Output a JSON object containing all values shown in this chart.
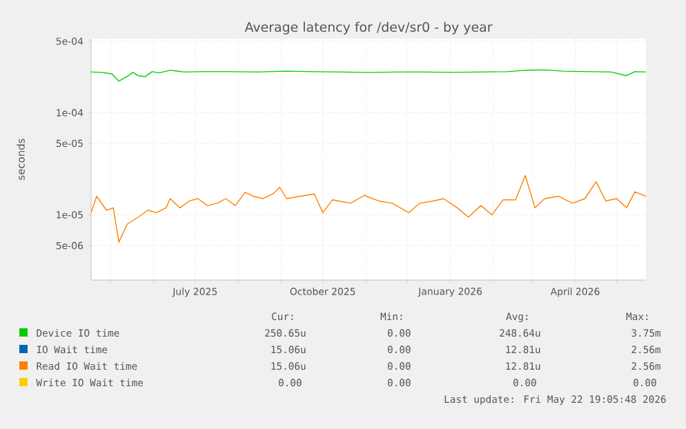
{
  "chart_data": {
    "type": "line",
    "title": "Average latency for /dev/sr0 - by year",
    "ylabel": "seconds",
    "x": [
      "2025-04-17",
      "2025-04-21",
      "2025-04-28",
      "2025-05-03",
      "2025-05-07",
      "2025-05-13",
      "2025-05-21",
      "2025-05-28",
      "2025-06-03",
      "2025-06-10",
      "2025-06-13",
      "2025-06-20",
      "2025-06-27",
      "2025-07-03",
      "2025-07-10",
      "2025-07-17",
      "2025-07-23",
      "2025-07-30",
      "2025-08-06",
      "2025-08-12",
      "2025-08-19",
      "2025-08-26",
      "2025-08-31",
      "2025-09-05",
      "2025-09-15",
      "2025-09-25",
      "2025-10-01",
      "2025-10-08",
      "2025-10-21",
      "2025-10-31",
      "2025-11-10",
      "2025-11-20",
      "2025-12-02",
      "2025-12-10",
      "2025-12-20",
      "2025-12-27",
      "2026-01-06",
      "2026-01-14",
      "2026-01-23",
      "2026-01-31",
      "2026-02-08",
      "2026-02-17",
      "2026-02-24",
      "2026-03-03",
      "2026-03-10",
      "2026-03-20",
      "2026-03-30",
      "2026-04-08",
      "2026-04-16",
      "2026-04-23",
      "2026-05-01",
      "2026-05-08",
      "2026-05-14",
      "2026-05-22"
    ],
    "series": [
      {
        "name": "Device IO time",
        "color": "#00cc00",
        "x": [
          "2025-04-17",
          "2025-04-24",
          "2025-05-02",
          "2025-05-07",
          "2025-05-10",
          "2025-05-14",
          "2025-05-17",
          "2025-05-21",
          "2025-05-26",
          "2025-05-31",
          "2025-06-05",
          "2025-06-13",
          "2025-06-23",
          "2025-07-06",
          "2025-07-26",
          "2025-08-15",
          "2025-09-04",
          "2025-09-24",
          "2025-10-14",
          "2025-11-03",
          "2025-11-23",
          "2025-12-13",
          "2026-01-02",
          "2026-01-22",
          "2026-02-11",
          "2026-02-24",
          "2026-03-10",
          "2026-03-23",
          "2026-04-12",
          "2026-04-27",
          "2026-05-08",
          "2026-05-14",
          "2026-05-22"
        ],
        "values": [
          0.00025,
          0.000248,
          0.00024,
          0.000203,
          0.000215,
          0.00023,
          0.000248,
          0.00023,
          0.000225,
          0.000252,
          0.000245,
          0.00026,
          0.00025,
          0.000252,
          0.000252,
          0.00025,
          0.000255,
          0.000252,
          0.00025,
          0.000247,
          0.00025,
          0.00025,
          0.000248,
          0.00025,
          0.000252,
          0.00026,
          0.000262,
          0.000255,
          0.000252,
          0.00025,
          0.00023,
          0.000252,
          0.00025
        ]
      },
      {
        "name": "IO Wait time",
        "color": "#0066b3",
        "values": [
          null,
          null,
          null,
          null,
          null,
          null,
          null,
          null,
          null,
          null,
          null,
          null,
          null,
          null,
          null,
          null,
          null,
          null,
          null,
          null,
          null,
          null,
          null,
          null,
          null,
          null,
          null,
          null,
          null,
          null,
          null,
          null,
          null,
          null,
          null,
          null,
          null,
          null,
          null,
          null,
          null,
          null,
          null,
          null,
          null,
          null,
          null,
          null,
          null,
          null,
          null,
          null,
          null,
          null
        ]
      },
      {
        "name": "Read IO Wait time",
        "color": "#ff8000",
        "values": [
          1.05e-05,
          1.52e-05,
          1.11e-05,
          1.17e-05,
          5.4e-06,
          8.1e-06,
          9.5e-06,
          1.11e-05,
          1.05e-05,
          1.17e-05,
          1.44e-05,
          1.17e-05,
          1.37e-05,
          1.44e-05,
          1.23e-05,
          1.3e-05,
          1.44e-05,
          1.23e-05,
          1.66e-05,
          1.52e-05,
          1.44e-05,
          1.6e-05,
          1.86e-05,
          1.44e-05,
          1.52e-05,
          1.6e-05,
          1.05e-05,
          1.4e-05,
          1.3e-05,
          1.55e-05,
          1.37e-05,
          1.3e-05,
          1.05e-05,
          1.3e-05,
          1.37e-05,
          1.44e-05,
          1.17e-05,
          9.5e-06,
          1.23e-05,
          1e-05,
          1.4e-05,
          1.4e-05,
          2.42e-05,
          1.17e-05,
          1.44e-05,
          1.52e-05,
          1.3e-05,
          1.44e-05,
          2.11e-05,
          1.37e-05,
          1.44e-05,
          1.17e-05,
          1.68e-05,
          1.52e-05
        ]
      },
      {
        "name": "Write IO Wait time",
        "color": "#ffcc00",
        "values": [
          null,
          null,
          null,
          null,
          null,
          null,
          null,
          null,
          null,
          null,
          null,
          null,
          null,
          null,
          null,
          null,
          null,
          null,
          null,
          null,
          null,
          null,
          null,
          null,
          null,
          null,
          null,
          null,
          null,
          null,
          null,
          null,
          null,
          null,
          null,
          null,
          null,
          null,
          null,
          null,
          null,
          null,
          null,
          null,
          null,
          null,
          null,
          null,
          null,
          null,
          null,
          null,
          null,
          null
        ]
      }
    ],
    "log": "y",
    "xlim": [
      "2025-04-17",
      "2026-05-22"
    ],
    "ylim": [
      2.3e-06,
      0.00053
    ],
    "xticks": [
      {
        "value": "2025-05-01",
        "label": null
      },
      {
        "value": "2025-06-01",
        "label": null
      },
      {
        "value": "2025-07-01",
        "label": "July 2025"
      },
      {
        "value": "2025-08-01",
        "label": null
      },
      {
        "value": "2025-09-01",
        "label": null
      },
      {
        "value": "2025-10-01",
        "label": "October 2025"
      },
      {
        "value": "2025-11-01",
        "label": null
      },
      {
        "value": "2025-12-01",
        "label": null
      },
      {
        "value": "2026-01-01",
        "label": "January 2026"
      },
      {
        "value": "2026-02-01",
        "label": null
      },
      {
        "value": "2026-03-01",
        "label": null
      },
      {
        "value": "2026-04-01",
        "label": "April 2026"
      },
      {
        "value": "2026-05-01",
        "label": null
      }
    ],
    "yticks": [
      {
        "value": 5e-06,
        "label": "5e-06"
      },
      {
        "value": 1e-05,
        "label": "1e-05"
      },
      {
        "value": 5e-05,
        "label": "5e-05"
      },
      {
        "value": 0.0001,
        "label": "1e-04"
      },
      {
        "value": 0.0005,
        "label": "5e-04"
      }
    ],
    "grid": true,
    "legend": "bottom",
    "marker": "none",
    "line_style": "solid",
    "annotations": [
      "Cur:",
      "Min:",
      "Avg:",
      "Max:",
      "250.65u",
      "0.00",
      "248.64u",
      "3.75m",
      "15.06u",
      "0.00",
      "12.81u",
      "2.56m",
      "15.06u",
      "0.00",
      "12.81u",
      "2.56m",
      "0.00",
      "0.00",
      "0.00",
      "0.00",
      "Last update: Fri May 22 19:05:48 2026"
    ]
  }
}
